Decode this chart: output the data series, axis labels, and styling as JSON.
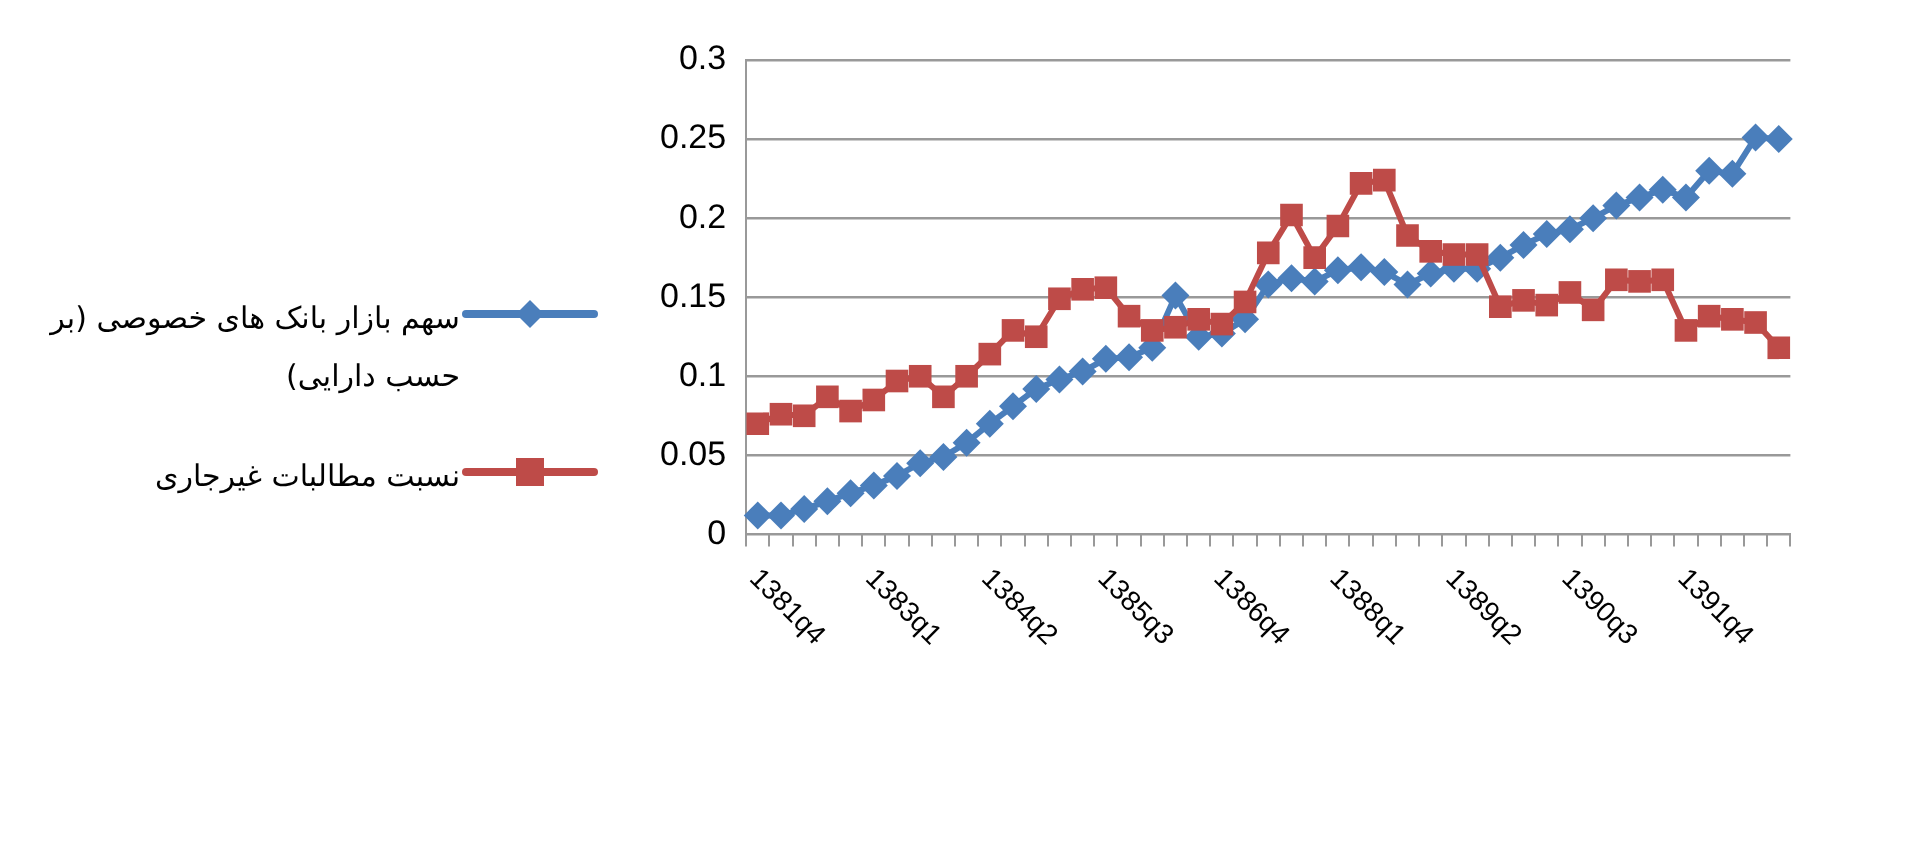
{
  "chart_data": {
    "type": "line",
    "categories": [
      "1381q4",
      null,
      null,
      null,
      null,
      "1383q1",
      null,
      null,
      null,
      null,
      "1384q2",
      null,
      null,
      null,
      null,
      "1385q3",
      null,
      null,
      null,
      null,
      "1386q4",
      null,
      null,
      null,
      null,
      "1388q1",
      null,
      null,
      null,
      null,
      "1389q2",
      null,
      null,
      null,
      null,
      "1390q3",
      null,
      null,
      null,
      null,
      "1391q4",
      null,
      null,
      null,
      null
    ],
    "series": [
      {
        "name": "سهم بازار بانک های خصوصی (بر حسب دارایی)",
        "color": "#4a7ebb",
        "marker": "diamond",
        "values": [
          0.012,
          0.012,
          0.016,
          0.021,
          0.026,
          0.031,
          0.037,
          0.045,
          0.049,
          0.058,
          0.07,
          0.081,
          0.092,
          0.098,
          0.103,
          0.111,
          0.112,
          0.118,
          0.151,
          0.125,
          0.127,
          0.136,
          0.158,
          0.162,
          0.16,
          0.167,
          0.169,
          0.166,
          0.158,
          0.165,
          0.168,
          0.168,
          0.175,
          0.183,
          0.19,
          0.193,
          0.2,
          0.208,
          0.213,
          0.218,
          0.213,
          0.23,
          0.228,
          0.251,
          0.25
        ]
      },
      {
        "name": "نسبت مطالبات غیرجاری",
        "color": "#be4b48",
        "marker": "square",
        "values": [
          0.07,
          0.076,
          0.075,
          0.087,
          0.078,
          0.085,
          0.097,
          0.1,
          0.087,
          0.1,
          0.114,
          0.129,
          0.125,
          0.149,
          0.155,
          0.156,
          0.138,
          0.129,
          0.131,
          0.136,
          0.133,
          0.147,
          0.178,
          0.202,
          0.175,
          0.195,
          0.222,
          0.224,
          0.189,
          0.179,
          0.177,
          0.177,
          0.144,
          0.148,
          0.145,
          0.153,
          0.142,
          0.161,
          0.16,
          0.161,
          0.129,
          0.138,
          0.136,
          0.134,
          0.118
        ]
      }
    ],
    "ylim": [
      0,
      0.3
    ],
    "yticks": [
      0,
      0.05,
      0.1,
      0.15,
      0.2,
      0.25,
      0.3
    ],
    "grid": "y",
    "legend": "left",
    "line_style": "solid"
  }
}
